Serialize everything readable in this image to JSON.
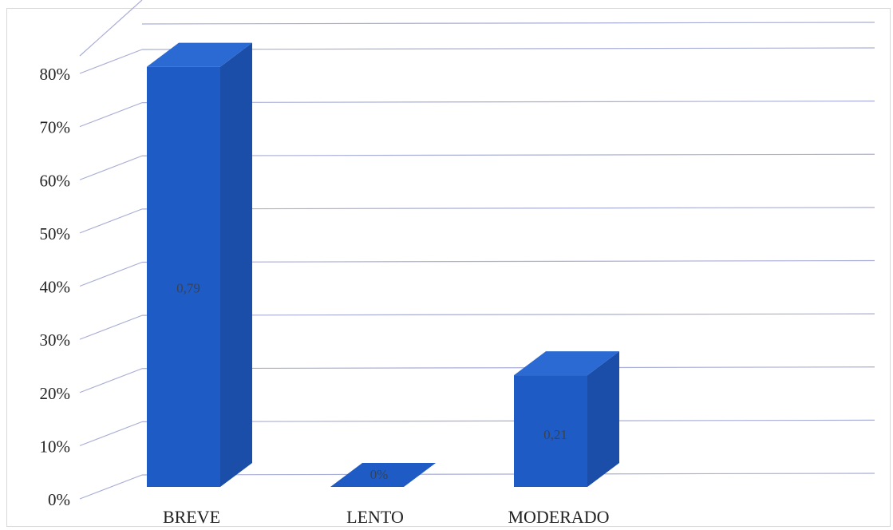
{
  "chart_data": {
    "type": "bar",
    "categories": [
      "BREVE",
      "LENTO",
      "MODERADO"
    ],
    "values": [
      0.79,
      0.0,
      0.21
    ],
    "data_labels": [
      "0,79",
      "0%",
      "0,21"
    ],
    "y_ticks": [
      "0%",
      "10%",
      "20%",
      "30%",
      "40%",
      "50%",
      "60%",
      "70%",
      "80%"
    ],
    "ylim": [
      0,
      0.8
    ],
    "grid": true,
    "bar_color": "#1f5bc4",
    "bar_side_color": "#1a4ea8",
    "bar_top_color": "#2a6ad2",
    "grid_color": "#a9aed6"
  }
}
